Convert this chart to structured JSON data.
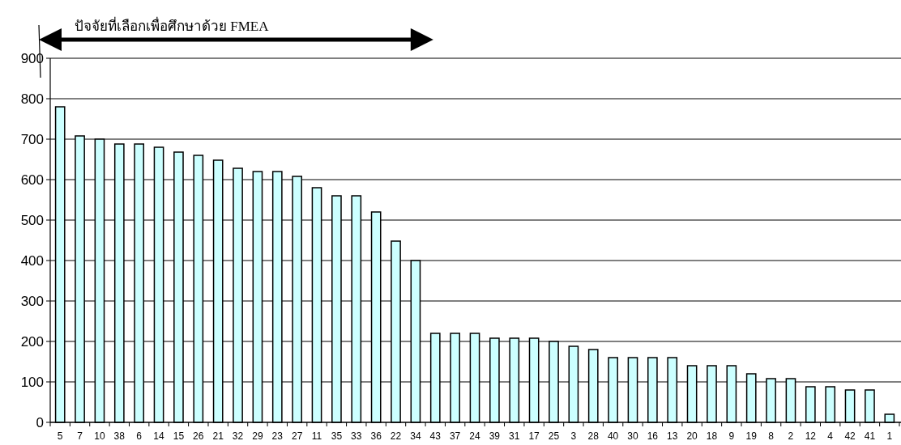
{
  "chart_data": {
    "type": "bar",
    "categories": [
      "5",
      "7",
      "10",
      "38",
      "6",
      "14",
      "15",
      "26",
      "21",
      "32",
      "29",
      "23",
      "27",
      "11",
      "35",
      "33",
      "36",
      "22",
      "34",
      "43",
      "37",
      "24",
      "39",
      "31",
      "17",
      "25",
      "3",
      "28",
      "40",
      "30",
      "16",
      "13",
      "20",
      "18",
      "9",
      "19",
      "8",
      "2",
      "12",
      "4",
      "42",
      "41",
      "1"
    ],
    "values": [
      780,
      708,
      700,
      688,
      688,
      680,
      668,
      660,
      648,
      628,
      620,
      620,
      608,
      580,
      560,
      560,
      520,
      448,
      400,
      220,
      220,
      220,
      208,
      208,
      208,
      200,
      188,
      180,
      160,
      160,
      160,
      160,
      140,
      140,
      140,
      120,
      108,
      108,
      88,
      88,
      80,
      80,
      20
    ],
    "color": "#ccffff",
    "ylim": [
      0,
      900
    ],
    "yticks": [
      0,
      100,
      200,
      300,
      400,
      500,
      600,
      700,
      800,
      900
    ],
    "grid": "y",
    "annotations": [
      "ปัจจัยที่เลือกเพื่อศึกษาด้วย FMEA"
    ]
  }
}
